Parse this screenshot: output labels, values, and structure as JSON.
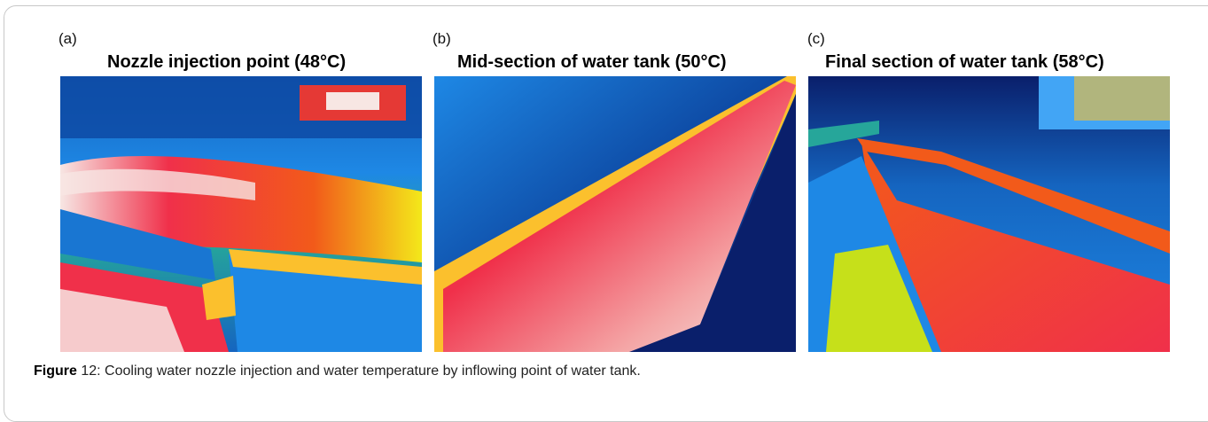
{
  "panels": [
    {
      "tag": "(a)",
      "title": "Nozzle injection point (48°C)"
    },
    {
      "tag": "(b)",
      "title": "Mid-section of water tank (50°C)"
    },
    {
      "tag": "(c)",
      "title": "Final section of water tank (58°C)"
    }
  ],
  "caption": {
    "label": "Figure",
    "number": " 12",
    "text": ": Cooling water nozzle injection and water temperature by inflowing point of water tank."
  },
  "colors": {
    "cold": "#0a1f6b",
    "cool": "#1e7fd8",
    "mid": "#f3e81a",
    "warm": "#f25a1a",
    "hot": "#f0304a",
    "hottest": "#f7e6e3"
  }
}
